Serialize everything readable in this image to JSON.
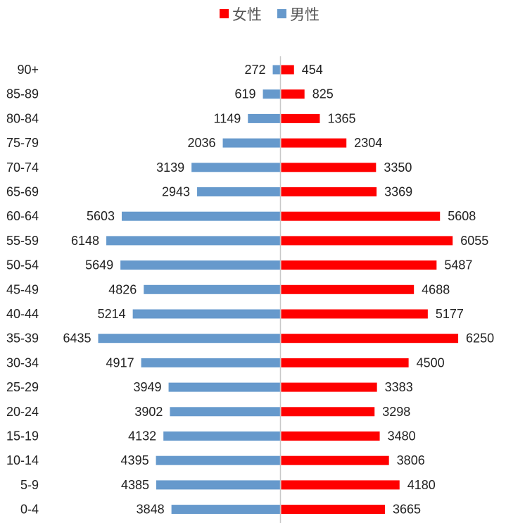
{
  "chart_data": {
    "type": "bar",
    "orientation": "horizontal-pyramid",
    "categories": [
      "90+",
      "85-89",
      "80-84",
      "75-79",
      "70-74",
      "65-69",
      "60-64",
      "55-59",
      "50-54",
      "45-49",
      "40-44",
      "35-39",
      "30-34",
      "25-29",
      "20-24",
      "15-19",
      "10-14",
      "5-9",
      "0-4"
    ],
    "series": [
      {
        "name": "女性",
        "side": "right",
        "color": "#ff0000",
        "values": [
          454,
          825,
          1365,
          2304,
          3350,
          3369,
          5608,
          6055,
          5487,
          4688,
          5177,
          6250,
          4500,
          3383,
          3298,
          3480,
          3806,
          4180,
          3665
        ]
      },
      {
        "name": "男性",
        "side": "left",
        "color": "#6699cc",
        "values": [
          272,
          619,
          1149,
          2036,
          3139,
          2943,
          5603,
          6148,
          5649,
          4826,
          5214,
          6435,
          4917,
          3949,
          3902,
          4132,
          4395,
          4385,
          3848
        ]
      }
    ],
    "legend": {
      "placement": "top",
      "items": [
        "女性",
        "男性"
      ]
    },
    "data_labels": true,
    "grid": false,
    "xlim": [
      -6500,
      6500
    ]
  }
}
